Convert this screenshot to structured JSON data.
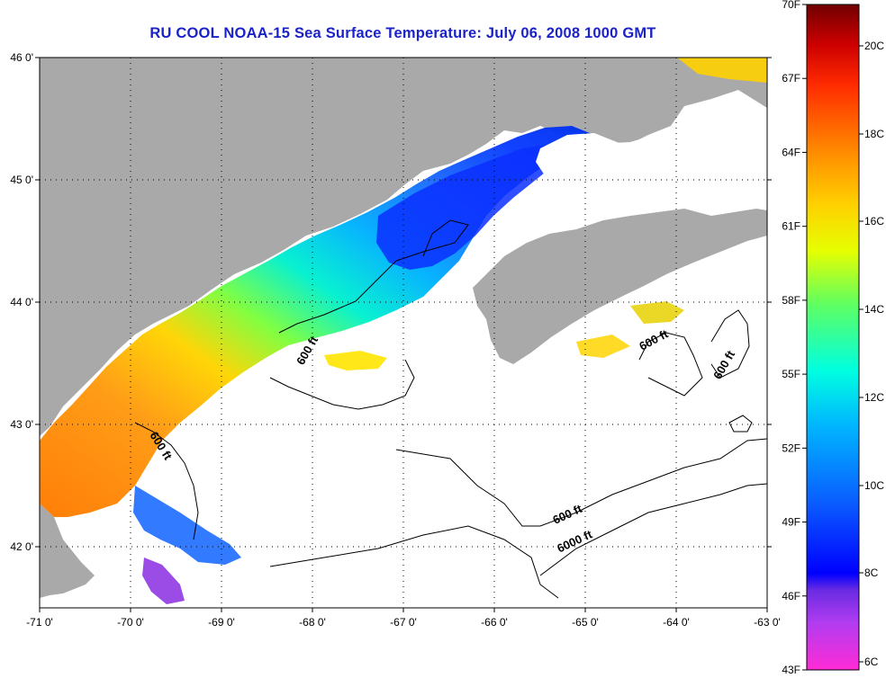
{
  "title": "RU COOL  NOAA-15  Sea Surface Temperature:  July 06, 2008 1000 GMT",
  "lon_ticks": [
    "-71 0'",
    "-70 0'",
    "-69 0'",
    "-68 0'",
    "-67 0'",
    "-66 0'",
    "-65 0'",
    "-64 0'",
    "-63 0'"
  ],
  "lat_ticks": [
    "46 0'",
    "45 0'",
    "44 0'",
    "43 0'",
    "42 0'"
  ],
  "contour_labels": [
    "600 ft",
    "600 ft",
    "600 ft",
    "600 ft",
    "600 ft",
    "6000 ft"
  ],
  "colorbar": {
    "fahrenheit_labels": [
      "70F",
      "67F",
      "64F",
      "61F",
      "58F",
      "55F",
      "52F",
      "49F",
      "46F",
      "43F"
    ],
    "celsius_labels": [
      "20C",
      "18C",
      "16C",
      "14C",
      "12C",
      "10C",
      "8C",
      "6C"
    ],
    "stops": [
      "#ff2bd6",
      "#8a2be2",
      "#0000ff",
      "#0a5cff",
      "#00c8ff",
      "#00ffd0",
      "#7dff3c",
      "#e6ff00",
      "#ffd000",
      "#ff8a00",
      "#ff2a00",
      "#b00000",
      "#700000"
    ]
  },
  "colors": {
    "land": "#a9a9a9",
    "no_data": "#ffffff",
    "grid": "#000000",
    "title": "#1a22c8"
  }
}
